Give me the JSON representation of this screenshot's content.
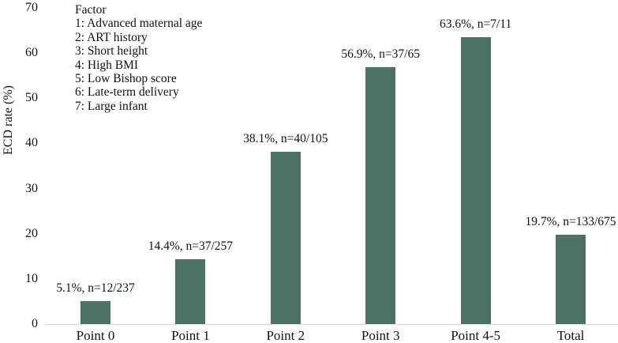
{
  "chart_data": {
    "type": "bar",
    "title": "",
    "xlabel": "",
    "ylabel": "ECD rate (%)",
    "ylim": [
      0,
      70
    ],
    "yticks": [
      0,
      10,
      20,
      30,
      40,
      50,
      60,
      70
    ],
    "grid": false,
    "legend_position": "top-left",
    "categories": [
      "Point 0",
      "Point 1",
      "Point 2",
      "Point 3",
      "Point 4-5",
      "Total"
    ],
    "values": [
      5.1,
      14.4,
      38.1,
      56.9,
      63.6,
      19.7
    ],
    "bar_labels": [
      "5.1%, n=12/237",
      "14.4%, n=37/257",
      "38.1%, n=40/105",
      "56.9%, n=37/65",
      "63.6%, n=7/11",
      "19.7%, n=133/675"
    ],
    "legend": {
      "title": "Factor",
      "entries": [
        "1: Advanced maternal age",
        "2: ART history",
        "3: Short height",
        "4: High BMI",
        "5: Low Bishop score",
        "6: Late-term delivery",
        "7: Large infant"
      ]
    }
  },
  "colors": {
    "bar": "#4d7164",
    "axis_line": "#d9d9d9",
    "text": "#111111"
  }
}
